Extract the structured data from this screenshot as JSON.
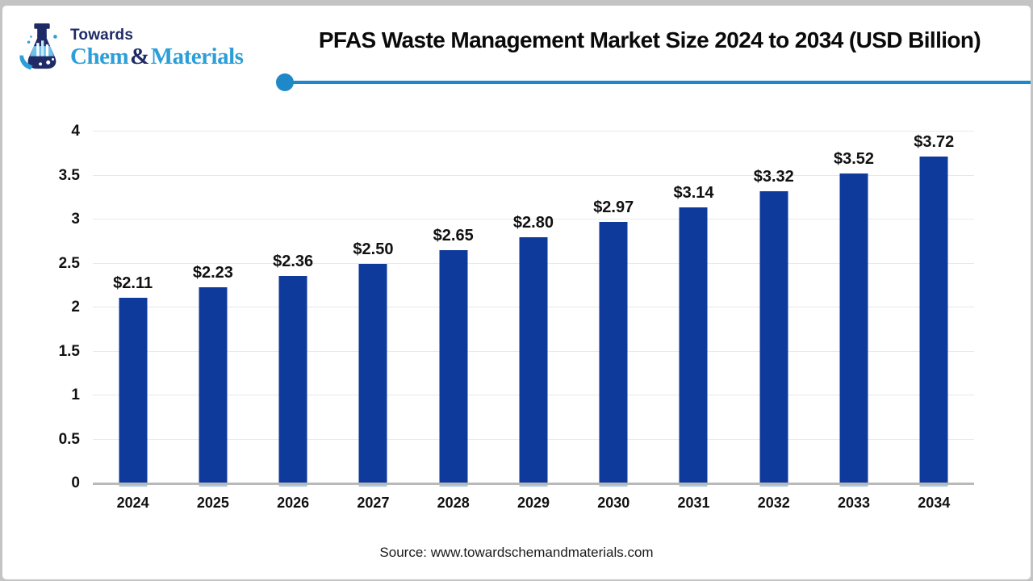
{
  "logo": {
    "line1": "Towards",
    "brand_chem": "Chem",
    "brand_amp": "&",
    "brand_materials": "Materials"
  },
  "header": {
    "title": "PFAS Waste Management Market Size 2024 to 2034 (USD Billion)"
  },
  "chart_data": {
    "type": "bar",
    "title": "PFAS Waste Management Market Size 2024 to 2034 (USD Billion)",
    "categories": [
      "2024",
      "2025",
      "2026",
      "2027",
      "2028",
      "2029",
      "2030",
      "2031",
      "2032",
      "2033",
      "2034"
    ],
    "values": [
      2.11,
      2.23,
      2.36,
      2.5,
      2.65,
      2.8,
      2.97,
      3.14,
      3.32,
      3.52,
      3.72
    ],
    "bar_labels": [
      "$2.11",
      "$2.23",
      "$2.36",
      "$2.50",
      "$2.65",
      "$2.80",
      "$2.97",
      "$3.14",
      "$3.32",
      "$3.52",
      "$3.72"
    ],
    "xlabel": "",
    "ylabel": "",
    "ylim": [
      0,
      4
    ],
    "yticks": [
      0,
      0.5,
      1,
      1.5,
      2,
      2.5,
      3,
      3.5,
      4
    ],
    "ytick_labels": [
      "0",
      "0.5",
      "1",
      "1.5",
      "2",
      "2.5",
      "3",
      "3.5",
      "4"
    ],
    "grid": true,
    "legend_position": "none"
  },
  "footer": {
    "source": "Source: www.towardschemandmaterials.com"
  },
  "colors": {
    "bar": "#0e3a9c",
    "bar_base_tick": "#a9c7e9",
    "accent_line": "#1f88c8",
    "logo_navy": "#1f2b66",
    "logo_blue": "#2d9fd8",
    "grid": "#e8e8e8",
    "axis_line": "#b9b9b9",
    "frame": "#c4c4c4",
    "text": "#111111"
  }
}
